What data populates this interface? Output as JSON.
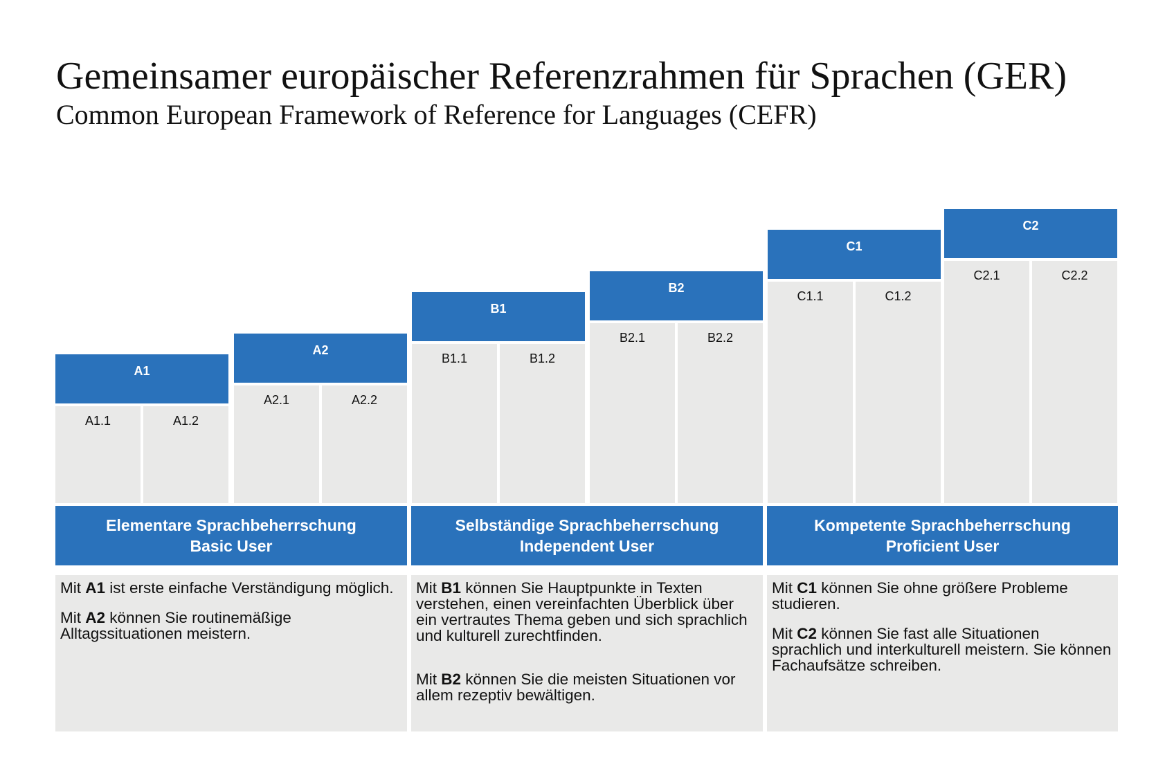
{
  "title": "Gemeinsamer europäischer Referenzrahmen für Sprachen (GER)",
  "subtitle": "Common European Framework of Reference for Languages (CEFR)",
  "levels": [
    {
      "label": "A1",
      "subs": [
        "A1.1",
        "A1.2"
      ]
    },
    {
      "label": "A2",
      "subs": [
        "A2.1",
        "A2.2"
      ]
    },
    {
      "label": "B1",
      "subs": [
        "B1.1",
        "B1.2"
      ]
    },
    {
      "label": "B2",
      "subs": [
        "B2.1",
        "B2.2"
      ]
    },
    {
      "label": "C1",
      "subs": [
        "C1.1",
        "C1.2"
      ]
    },
    {
      "label": "C2",
      "subs": [
        "C2.1",
        "C2.2"
      ]
    }
  ],
  "groups": [
    {
      "title_de": "Elementare Sprachbeherrschung",
      "title_en": "Basic User",
      "desc": [
        {
          "pre": "Mit ",
          "bold": "A1",
          "post": " ist erste einfache Verständigung möglich."
        },
        {
          "pre": "Mit ",
          "bold": "A2",
          "post": " können Sie routinemäßige Alltagssituationen meistern."
        }
      ]
    },
    {
      "title_de": "Selbständige Sprachbeherrschung",
      "title_en": "Independent User",
      "desc": [
        {
          "pre": "Mit ",
          "bold": "B1",
          "post": " können Sie Hauptpunkte in Texten verstehen, einen vereinfachten Überblick über ein vertrautes Thema geben und sich sprachlich und kulturell zurechtfinden."
        },
        {
          "pre": "Mit ",
          "bold": "B2",
          "post": " können Sie die meisten Situationen vor allem rezeptiv bewältigen."
        }
      ]
    },
    {
      "title_de": "Kompetente Sprachbeherrschung",
      "title_en": "Proficient User",
      "desc": [
        {
          "pre": "Mit ",
          "bold": "C1",
          "post": " können Sie ohne größere Probleme studieren."
        },
        {
          "pre": "Mit ",
          "bold": "C2",
          "post": " können Sie fast alle Situationen sprachlich und interkulturell meistern. Sie können Fachaufsätze schreiben."
        }
      ]
    }
  ]
}
